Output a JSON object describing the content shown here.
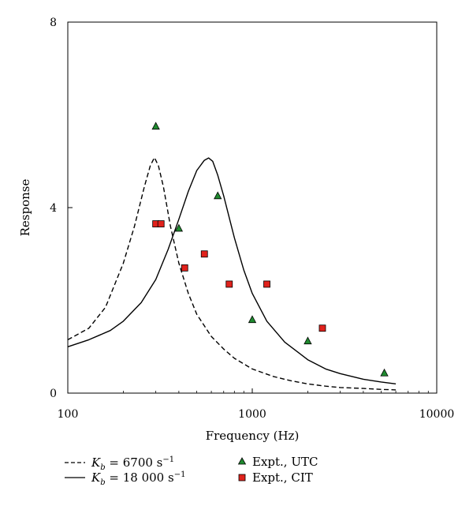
{
  "chart_data": {
    "type": "line",
    "xlabel": "Frequency (Hz)",
    "ylabel": "Response",
    "xscale": "log",
    "xlim": [
      100,
      10000
    ],
    "ylim": [
      0,
      8
    ],
    "x_ticks": [
      {
        "value": 100,
        "label": "100"
      },
      {
        "value": 1000,
        "label": "1000"
      },
      {
        "value": 10000,
        "label": "10000"
      }
    ],
    "y_ticks": [
      {
        "value": 0,
        "label": "0"
      },
      {
        "value": 4,
        "label": "4"
      },
      {
        "value": 8,
        "label": "8"
      }
    ],
    "grid": false,
    "legend_position": "bottom",
    "series": [
      {
        "type": "line",
        "style": "dashed",
        "color": "#000000",
        "legend": {
          "symbol": "K",
          "subscript": "b",
          "value": " = 6700 s",
          "sup": "−1"
        },
        "x": [
          100,
          130,
          160,
          200,
          230,
          260,
          280,
          295,
          310,
          330,
          360,
          400,
          450,
          500,
          600,
          700,
          800,
          1000,
          1300,
          1600,
          2000,
          2500,
          3000,
          4000,
          5000,
          6000
        ],
        "y": [
          1.15,
          1.4,
          1.85,
          2.8,
          3.6,
          4.45,
          4.9,
          5.08,
          4.9,
          4.45,
          3.6,
          2.8,
          2.15,
          1.7,
          1.22,
          0.95,
          0.75,
          0.52,
          0.36,
          0.27,
          0.2,
          0.15,
          0.12,
          0.1,
          0.08,
          0.07
        ]
      },
      {
        "type": "line",
        "style": "solid",
        "color": "#000000",
        "legend": {
          "symbol": "K",
          "subscript": "b",
          "value": " = 18 000 s",
          "sup": "−1"
        },
        "x": [
          100,
          130,
          170,
          200,
          250,
          300,
          350,
          400,
          450,
          500,
          550,
          580,
          610,
          650,
          700,
          800,
          900,
          1000,
          1200,
          1500,
          2000,
          2500,
          3000,
          4000,
          5000,
          6000
        ],
        "y": [
          1.0,
          1.15,
          1.35,
          1.55,
          1.95,
          2.45,
          3.1,
          3.75,
          4.35,
          4.8,
          5.02,
          5.07,
          5.0,
          4.7,
          4.25,
          3.35,
          2.65,
          2.15,
          1.55,
          1.1,
          0.72,
          0.52,
          0.42,
          0.3,
          0.24,
          0.2
        ]
      },
      {
        "type": "scatter",
        "marker": "triangle",
        "color": "#1f8a2f",
        "legend": {
          "text": "Expt., UTC"
        },
        "x": [
          300,
          400,
          650,
          1000,
          2000,
          5200
        ],
        "y": [
          5.75,
          3.55,
          4.25,
          1.58,
          1.12,
          0.43
        ]
      },
      {
        "type": "scatter",
        "marker": "square",
        "color": "#e0221c",
        "legend": {
          "text": "Expt., CIT"
        },
        "x": [
          300,
          320,
          430,
          550,
          750,
          1200,
          2400
        ],
        "y": [
          3.65,
          3.65,
          2.7,
          3.0,
          2.35,
          2.35,
          1.4
        ]
      }
    ]
  }
}
